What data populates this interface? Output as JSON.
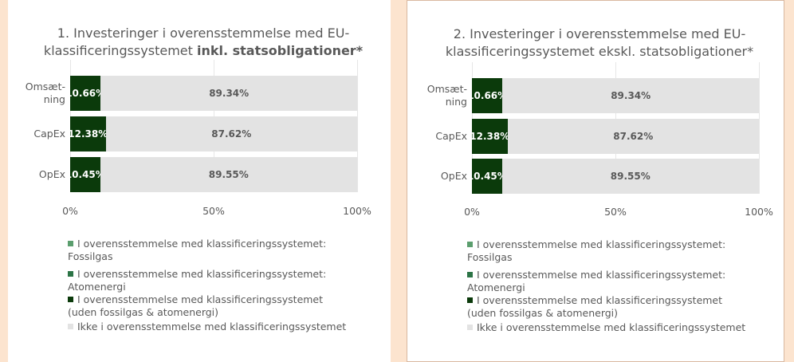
{
  "chart_data": [
    {
      "type": "stacked-bar-horizontal",
      "title": "1. Investeringer i overensstemmelse med EU-klassificeringssystemet",
      "title_bold": "inkl. statsobligationer*",
      "categories": [
        "Omsæt-ning",
        "CapEx",
        "OpEx"
      ],
      "series": [
        {
          "name": "I overensstemmelse med klassificeringssystemet: Fossilgas",
          "color": "#5b9e6e",
          "values": [
            0,
            0,
            0
          ]
        },
        {
          "name": "I overensstemmelse med klassificeringssystemet: Atomenergi",
          "color": "#2c7446",
          "values": [
            0,
            0,
            0
          ]
        },
        {
          "name": "I overensstemmelse med klassificeringssystemet (uden fossilgas & atomenergi)",
          "color": "#0b3a0b",
          "values": [
            10.66,
            12.38,
            10.45
          ],
          "value_labels": [
            "10.66%",
            "12.38%",
            "10.45%"
          ]
        },
        {
          "name": "Ikke i overensstemmelse med klassificeringssystemet",
          "color": "#e3e3e3",
          "values": [
            89.34,
            87.62,
            89.55
          ],
          "value_labels": [
            "89.34%",
            "87.62%",
            "89.55%"
          ]
        }
      ],
      "xlim": [
        0,
        100
      ],
      "xticks": [
        {
          "value": 0,
          "label": "0%"
        },
        {
          "value": 50,
          "label": "50%"
        },
        {
          "value": 100,
          "label": "100%"
        }
      ],
      "grid": true
    },
    {
      "type": "stacked-bar-horizontal",
      "title": "2. Investeringer i overensstemmelse med EU-klassificeringssystemet ekskl. statsobligationer*",
      "categories": [
        "Omsæt-ning",
        "CapEx",
        "OpEx"
      ],
      "series": [
        {
          "name": "I overensstemmelse med klassificeringssystemet: Fossilgas",
          "color": "#5b9e6e",
          "values": [
            0,
            0,
            0
          ]
        },
        {
          "name": "I overensstemmelse med klassificeringssystemet: Atomenergi",
          "color": "#2c7446",
          "values": [
            0,
            0,
            0
          ]
        },
        {
          "name": "I overensstemmelse med klassificeringssystemet (uden fossilgas & atomenergi)",
          "color": "#0b3a0b",
          "values": [
            10.66,
            12.38,
            10.45
          ],
          "value_labels": [
            "10.66%",
            "12.38%",
            "10.45%"
          ]
        },
        {
          "name": "Ikke i overensstemmelse med klassificeringssystemet",
          "color": "#e3e3e3",
          "values": [
            89.34,
            87.62,
            89.55
          ],
          "value_labels": [
            "89.34%",
            "87.62%",
            "89.55%"
          ]
        }
      ],
      "xlim": [
        0,
        100
      ],
      "xticks": [
        {
          "value": 0,
          "label": "0%"
        },
        {
          "value": 50,
          "label": "50%"
        },
        {
          "value": 100,
          "label": "100%"
        }
      ],
      "grid": true
    }
  ]
}
